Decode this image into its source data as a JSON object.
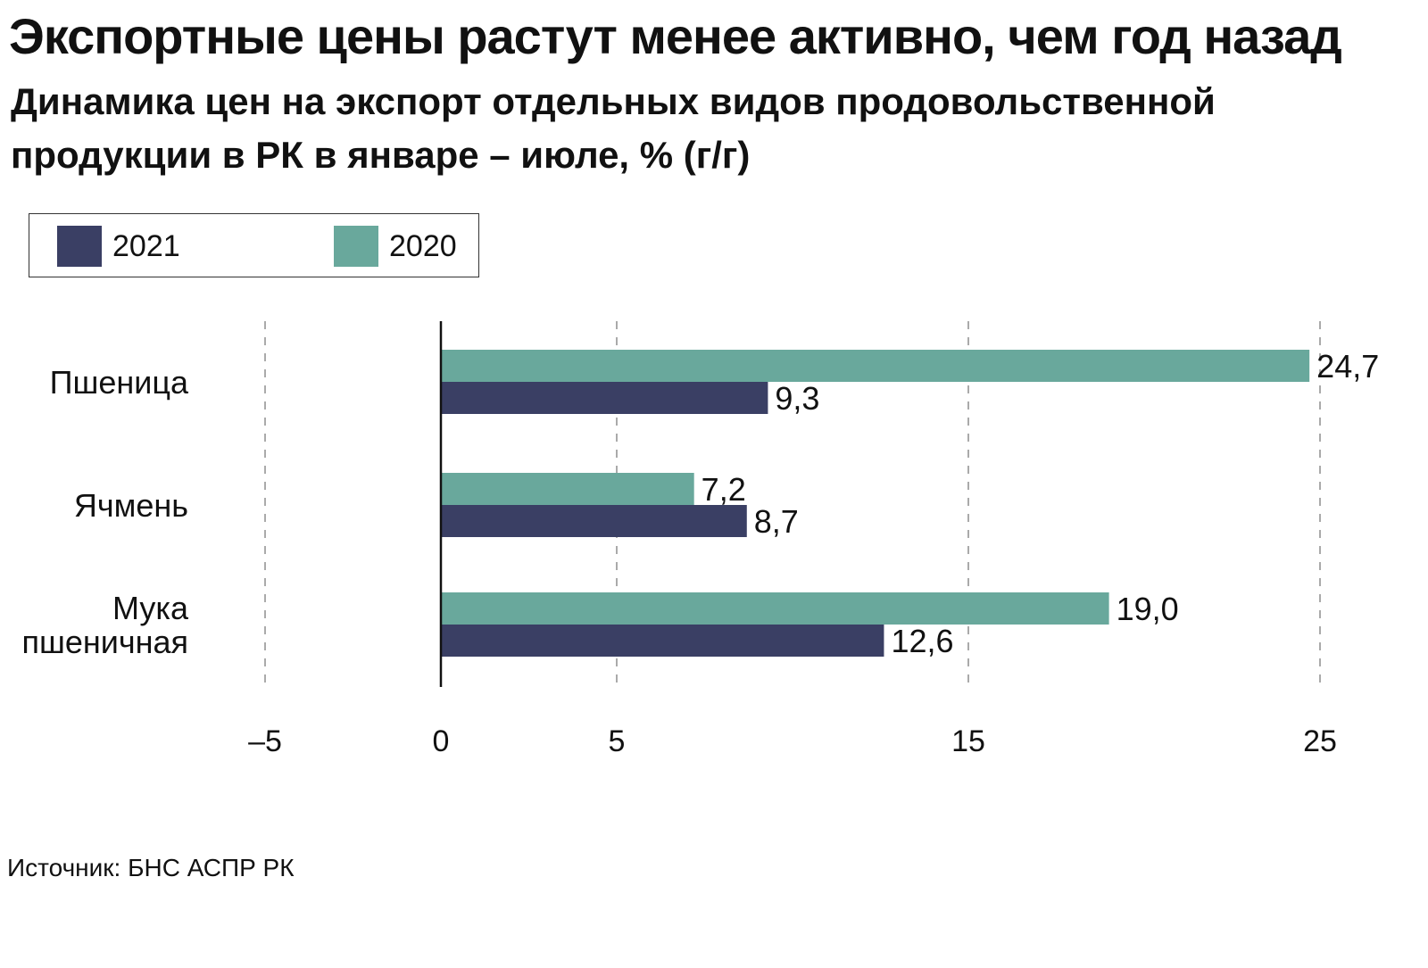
{
  "title": "Экспортные цены растут менее активно, чем год назад",
  "subtitle": "Динамика цен на экспорт отдельных видов продовольственной продукции в РК в январе – июле, % (г/г)",
  "source": "Источник: БНС АСПР РК",
  "colors": {
    "s2021": "#3a3f64",
    "s2020": "#69a89c",
    "axis": "#111111",
    "grid": "#aaaaaa"
  },
  "legend": [
    {
      "name": "2021",
      "color": "#3a3f64"
    },
    {
      "name": "2020",
      "color": "#69a89c"
    }
  ],
  "chart_data": {
    "type": "bar",
    "orientation": "horizontal",
    "categories": [
      [
        "Пшеница"
      ],
      [
        "Ячмень"
      ],
      [
        "Мука",
        "пшеничная"
      ]
    ],
    "series": [
      {
        "name": "2020",
        "values": [
          24.7,
          7.2,
          19.0
        ],
        "labels": [
          "24,7",
          "7,2",
          "19,0"
        ]
      },
      {
        "name": "2021",
        "values": [
          9.3,
          8.7,
          12.6
        ],
        "labels": [
          "9,3",
          "8,7",
          "12,6"
        ]
      }
    ],
    "xlim": [
      -5,
      25
    ],
    "ticks": [
      -5,
      0,
      5,
      15,
      25
    ],
    "tick_labels": [
      "–5",
      "0",
      "5",
      "15",
      "25"
    ],
    "grid": true,
    "legend_position": "top-left"
  }
}
